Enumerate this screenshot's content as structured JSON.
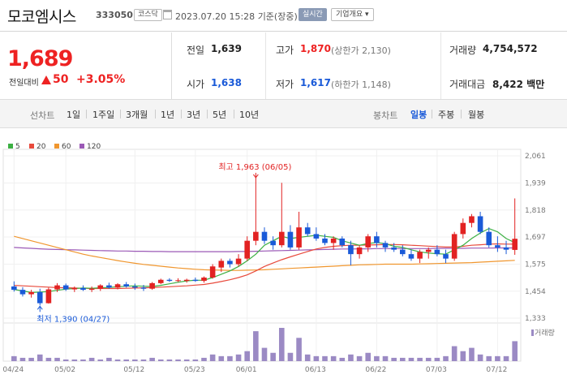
{
  "header": {
    "name": "모코엠시스",
    "code": "333050",
    "market": "코스닥",
    "datetime": "2023.07.20 15:28",
    "basis": "기준(장중)",
    "live_badge": "실시간",
    "info_badge": "기업개요"
  },
  "price": {
    "current": "1,689",
    "change_label": "전일대비",
    "change": "50",
    "change_pct": "+3.05%",
    "direction": "up"
  },
  "stats": {
    "prev_close_label": "전일",
    "prev_close": "1,639",
    "high_label": "고가",
    "high": "1,870",
    "upper_limit": "(상한가 2,130)",
    "volume_label": "거래량",
    "volume": "4,754,572",
    "open_label": "시가",
    "open": "1,638",
    "low_label": "저가",
    "low": "1,617",
    "lower_limit": "(하한가 1,148)",
    "amount_label": "거래대금",
    "amount": "8,422",
    "amount_unit": "백만"
  },
  "toolbar": {
    "line_chart_label": "선차트",
    "periods": [
      "1일",
      "1주일",
      "3개월",
      "1년",
      "3년",
      "5년",
      "10년"
    ],
    "candle_chart_label": "봉차트",
    "candle_periods": [
      "일봉",
      "주봉",
      "월봉"
    ],
    "active_candle_period": "일봉"
  },
  "colors": {
    "up": "#e22222",
    "down": "#1a5ad8",
    "ma5": "#3cb043",
    "ma20": "#e84a3c",
    "ma60": "#f0962e",
    "ma120": "#9b59b6",
    "volume": "#9b8ac4"
  },
  "chart_data": {
    "type": "candlestick",
    "legend": [
      "5",
      "20",
      "60",
      "120"
    ],
    "y_ticks": [
      2061,
      1939,
      1818,
      1697,
      1575,
      1454,
      1333
    ],
    "y_tick_labels": [
      "2,061",
      "1,939",
      "1,818",
      "1,697",
      "1,575",
      "1,454",
      "1,333"
    ],
    "ylim": [
      1333,
      2061
    ],
    "x_tick_labels": [
      "04/24",
      "05/02",
      "05/12",
      "05/23",
      "06/01",
      "06/13",
      "06/22",
      "07/03",
      "07/12"
    ],
    "x_tick_index": [
      0,
      6,
      14,
      21,
      27,
      35,
      42,
      49,
      56
    ],
    "annotations": {
      "high": "최고 1,963 (06/05)",
      "low": "최저 1,390 (04/27)",
      "volume_label": "거래량"
    },
    "candles": [
      [
        1475,
        1498,
        1452,
        1460
      ],
      [
        1460,
        1472,
        1430,
        1440
      ],
      [
        1440,
        1460,
        1425,
        1450
      ],
      [
        1450,
        1465,
        1390,
        1400
      ],
      [
        1400,
        1470,
        1398,
        1462
      ],
      [
        1462,
        1490,
        1450,
        1480
      ],
      [
        1480,
        1488,
        1455,
        1462
      ],
      [
        1462,
        1475,
        1450,
        1468
      ],
      [
        1468,
        1480,
        1455,
        1460
      ],
      [
        1460,
        1475,
        1450,
        1465
      ],
      [
        1465,
        1485,
        1455,
        1480
      ],
      [
        1480,
        1492,
        1465,
        1470
      ],
      [
        1470,
        1490,
        1462,
        1485
      ],
      [
        1485,
        1495,
        1470,
        1475
      ],
      [
        1475,
        1488,
        1460,
        1470
      ],
      [
        1470,
        1482,
        1455,
        1465
      ],
      [
        1465,
        1495,
        1460,
        1490
      ],
      [
        1490,
        1510,
        1485,
        1505
      ],
      [
        1505,
        1512,
        1495,
        1500
      ],
      [
        1500,
        1512,
        1495,
        1503
      ],
      [
        1500,
        1510,
        1492,
        1505
      ],
      [
        1505,
        1515,
        1496,
        1500
      ],
      [
        1500,
        1520,
        1492,
        1515
      ],
      [
        1515,
        1575,
        1510,
        1565
      ],
      [
        1560,
        1600,
        1540,
        1590
      ],
      [
        1590,
        1600,
        1560,
        1575
      ],
      [
        1575,
        1620,
        1565,
        1600
      ],
      [
        1600,
        1700,
        1590,
        1680
      ],
      [
        1680,
        1963,
        1660,
        1720
      ],
      [
        1720,
        1740,
        1665,
        1680
      ],
      [
        1680,
        1700,
        1640,
        1660
      ],
      [
        1660,
        1940,
        1650,
        1720
      ],
      [
        1720,
        1750,
        1640,
        1650
      ],
      [
        1650,
        1810,
        1640,
        1740
      ],
      [
        1740,
        1760,
        1700,
        1710
      ],
      [
        1710,
        1740,
        1680,
        1690
      ],
      [
        1690,
        1710,
        1660,
        1670
      ],
      [
        1670,
        1700,
        1640,
        1690
      ],
      [
        1690,
        1700,
        1650,
        1660
      ],
      [
        1660,
        1680,
        1570,
        1620
      ],
      [
        1620,
        1660,
        1600,
        1650
      ],
      [
        1650,
        1710,
        1630,
        1700
      ],
      [
        1700,
        1720,
        1650,
        1670
      ],
      [
        1670,
        1680,
        1630,
        1650
      ],
      [
        1650,
        1670,
        1630,
        1640
      ],
      [
        1640,
        1660,
        1610,
        1620
      ],
      [
        1620,
        1640,
        1590,
        1600
      ],
      [
        1600,
        1640,
        1580,
        1630
      ],
      [
        1630,
        1650,
        1600,
        1640
      ],
      [
        1640,
        1660,
        1610,
        1620
      ],
      [
        1620,
        1640,
        1580,
        1600
      ],
      [
        1600,
        1720,
        1590,
        1710
      ],
      [
        1710,
        1780,
        1690,
        1760
      ],
      [
        1760,
        1800,
        1740,
        1790
      ],
      [
        1790,
        1810,
        1710,
        1720
      ],
      [
        1720,
        1740,
        1650,
        1660
      ],
      [
        1660,
        1700,
        1630,
        1650
      ],
      [
        1650,
        1680,
        1620,
        1640
      ],
      [
        1639,
        1870,
        1617,
        1689
      ]
    ],
    "volume": [
      3,
      2,
      2,
      4,
      2,
      2,
      1,
      1,
      1,
      2,
      1,
      2,
      1,
      1,
      1,
      1,
      2,
      1,
      1,
      1,
      1,
      1,
      2,
      4,
      3,
      3,
      4,
      6,
      18,
      8,
      5,
      20,
      5,
      14,
      4,
      3,
      3,
      3,
      2,
      4,
      3,
      5,
      3,
      3,
      2,
      2,
      2,
      2,
      2,
      2,
      3,
      9,
      6,
      8,
      4,
      3,
      3,
      3,
      12
    ],
    "ma": {
      "5": [
        1462,
        1455,
        1448,
        1450,
        1452,
        1458,
        1463,
        1466,
        1468,
        1467,
        1469,
        1471,
        1474,
        1476,
        1478,
        1476,
        1475,
        1480,
        1487,
        1494,
        1500,
        1503,
        1503,
        1515,
        1530,
        1545,
        1565,
        1590,
        1620,
        1660,
        1680,
        1700,
        1690,
        1695,
        1700,
        1705,
        1700,
        1695,
        1680,
        1670,
        1660,
        1668,
        1672,
        1667,
        1655,
        1650,
        1640,
        1630,
        1625,
        1622,
        1620,
        1640,
        1660,
        1690,
        1715,
        1735,
        1720,
        1690,
        1672
      ],
      "20": [
        1480,
        1478,
        1476,
        1474,
        1472,
        1470,
        1469,
        1468,
        1467,
        1466,
        1466,
        1466,
        1466,
        1467,
        1468,
        1469,
        1470,
        1472,
        1474,
        1476,
        1478,
        1481,
        1484,
        1490,
        1497,
        1505,
        1515,
        1527,
        1545,
        1565,
        1580,
        1595,
        1608,
        1620,
        1632,
        1643,
        1650,
        1655,
        1658,
        1660,
        1660,
        1661,
        1662,
        1663,
        1663,
        1662,
        1660,
        1658,
        1656,
        1654,
        1652,
        1652,
        1655,
        1660,
        1662,
        1665,
        1666,
        1665,
        1665
      ],
      "60": [
        1700,
        1690,
        1680,
        1670,
        1660,
        1650,
        1640,
        1630,
        1620,
        1612,
        1605,
        1598,
        1591,
        1585,
        1579,
        1574,
        1570,
        1566,
        1562,
        1558,
        1555,
        1552,
        1550,
        1549,
        1548,
        1547,
        1547,
        1548,
        1549,
        1550,
        1552,
        1554,
        1556,
        1558,
        1560,
        1562,
        1564,
        1566,
        1568,
        1570,
        1572,
        1573,
        1574,
        1575,
        1575,
        1575,
        1575,
        1576,
        1577,
        1578,
        1579,
        1580,
        1581,
        1582,
        1584,
        1586,
        1588,
        1590,
        1592
      ],
      "120": [
        1650,
        1648,
        1646,
        1644,
        1642,
        1641,
        1640,
        1639,
        1638,
        1637,
        1636,
        1635,
        1634,
        1634,
        1633,
        1633,
        1632,
        1632,
        1631,
        1631,
        1631,
        1631,
        1631,
        1631,
        1631,
        1631,
        1632,
        1632,
        1633,
        1634,
        1635,
        1636,
        1637,
        1638,
        1639,
        1640,
        1641,
        1642,
        1643,
        1643,
        1644,
        1644,
        1645,
        1645,
        1645,
        1645,
        1645,
        1645,
        1645,
        1646,
        1646,
        1646,
        1646,
        1647,
        1647,
        1647,
        1648,
        1648,
        1648
      ]
    }
  }
}
